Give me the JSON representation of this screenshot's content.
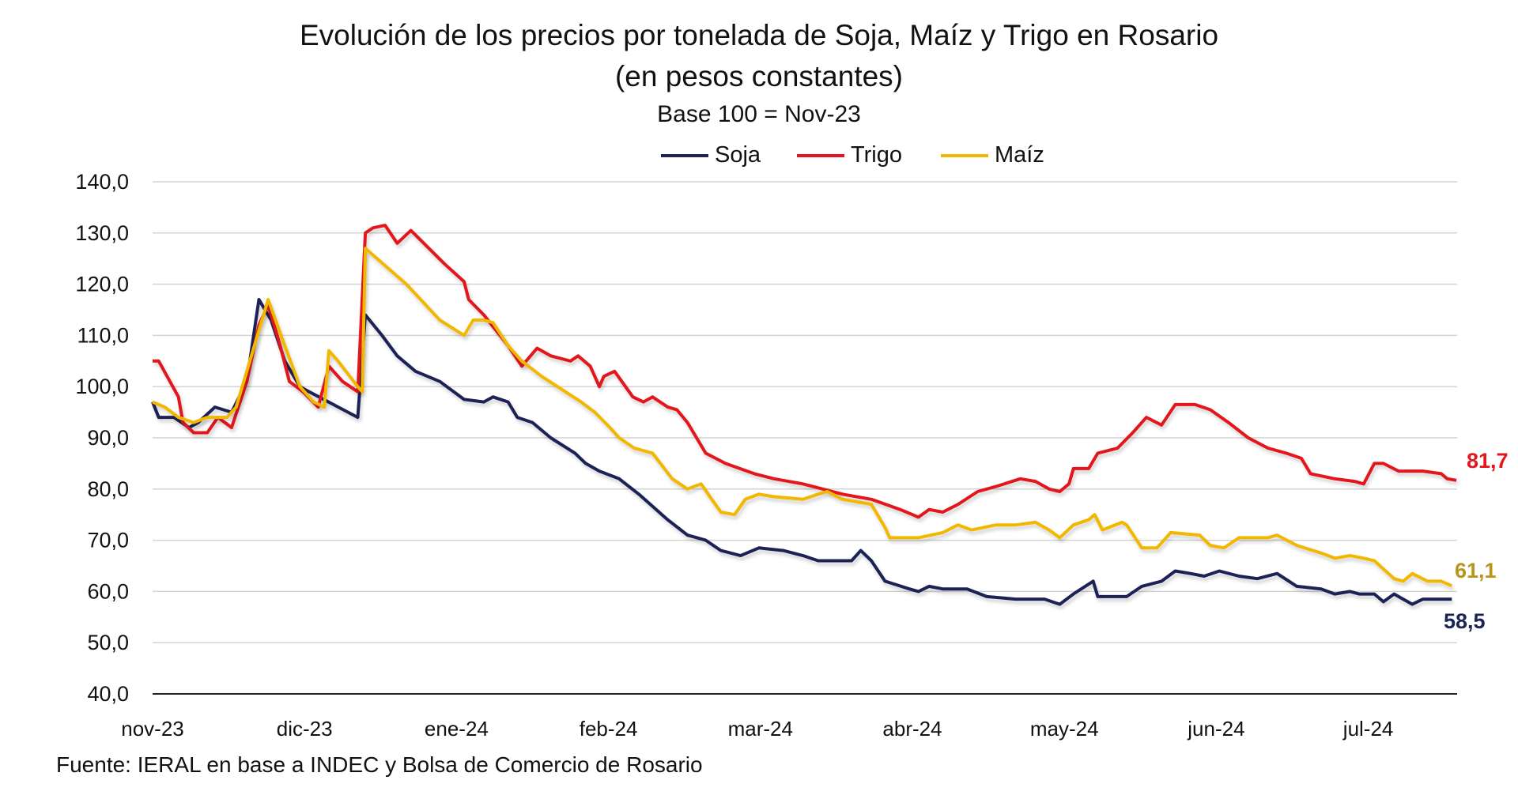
{
  "chart_data": {
    "type": "line",
    "title": "Evolución de los precios por tonelada de Soja, Maíz y Trigo en Rosario",
    "subtitle": "(en pesos constantes)",
    "subtitle2": "Base 100 = Nov-23",
    "xlabel": "",
    "ylabel": "",
    "ylim": [
      40,
      140
    ],
    "yticks": [
      40,
      50,
      60,
      70,
      80,
      90,
      100,
      110,
      120,
      130,
      140
    ],
    "ytick_labels": [
      "40,0",
      "50,0",
      "60,0",
      "70,0",
      "80,0",
      "90,0",
      "100,0",
      "110,0",
      "120,0",
      "130,0",
      "140,0"
    ],
    "x_unit": "months since start of nov-23",
    "xlim": [
      0,
      8.6
    ],
    "xticks": [
      0,
      1,
      2,
      3,
      4,
      5,
      6,
      7,
      8
    ],
    "xtick_labels": [
      "nov-23",
      "dic-23",
      "ene-24",
      "feb-24",
      "mar-24",
      "abr-24",
      "may-24",
      "jun-24",
      "jul-24"
    ],
    "grid": true,
    "legend_placement": "top-center",
    "series": [
      {
        "name": "Soja",
        "color": "#1b2454",
        "end_label": "58,5",
        "points": [
          [
            0,
            97
          ],
          [
            0.04,
            94
          ],
          [
            0.14,
            94
          ],
          [
            0.24,
            92
          ],
          [
            0.3,
            93
          ],
          [
            0.41,
            96
          ],
          [
            0.52,
            95
          ],
          [
            0.62,
            101
          ],
          [
            0.7,
            117
          ],
          [
            0.78,
            113
          ],
          [
            0.87,
            105
          ],
          [
            0.97,
            100
          ],
          [
            1.03,
            99
          ],
          [
            1.35,
            94
          ],
          [
            1.4,
            114
          ],
          [
            1.51,
            110
          ],
          [
            1.61,
            106
          ],
          [
            1.73,
            103
          ],
          [
            1.89,
            101
          ],
          [
            2.05,
            97.5
          ],
          [
            2.18,
            97
          ],
          [
            2.24,
            98
          ],
          [
            2.34,
            97
          ],
          [
            2.4,
            94
          ],
          [
            2.5,
            93
          ],
          [
            2.62,
            90
          ],
          [
            2.78,
            87
          ],
          [
            2.85,
            85
          ],
          [
            2.94,
            83.5
          ],
          [
            3.07,
            82
          ],
          [
            3.2,
            79
          ],
          [
            3.39,
            74
          ],
          [
            3.52,
            71
          ],
          [
            3.64,
            70
          ],
          [
            3.74,
            68
          ],
          [
            3.87,
            67
          ],
          [
            3.99,
            68.5
          ],
          [
            4.15,
            68
          ],
          [
            4.28,
            67
          ],
          [
            4.38,
            66
          ],
          [
            4.54,
            66
          ],
          [
            4.6,
            66
          ],
          [
            4.66,
            68
          ],
          [
            4.73,
            66
          ],
          [
            4.82,
            62
          ],
          [
            4.98,
            60.5
          ],
          [
            5.04,
            60
          ],
          [
            5.11,
            61
          ],
          [
            5.2,
            60.5
          ],
          [
            5.36,
            60.5
          ],
          [
            5.49,
            59
          ],
          [
            5.68,
            58.5
          ],
          [
            5.87,
            58.5
          ],
          [
            5.97,
            57.5
          ],
          [
            6.06,
            59.5
          ],
          [
            6.19,
            62
          ],
          [
            6.22,
            59
          ],
          [
            6.41,
            59
          ],
          [
            6.51,
            61
          ],
          [
            6.64,
            62
          ],
          [
            6.73,
            64
          ],
          [
            6.83,
            63.5
          ],
          [
            6.92,
            63
          ],
          [
            7.02,
            64
          ],
          [
            7.15,
            63
          ],
          [
            7.27,
            62.5
          ],
          [
            7.4,
            63.5
          ],
          [
            7.53,
            61
          ],
          [
            7.69,
            60.5
          ],
          [
            7.78,
            59.5
          ],
          [
            7.88,
            60
          ],
          [
            7.94,
            59.5
          ],
          [
            8.04,
            59.5
          ],
          [
            8.1,
            58
          ],
          [
            8.17,
            59.5
          ],
          [
            8.29,
            57.5
          ],
          [
            8.36,
            58.5
          ],
          [
            8.55,
            58.5
          ]
        ]
      },
      {
        "name": "Trigo",
        "color": "#e3161d",
        "end_label": "81,7",
        "points": [
          [
            0,
            105
          ],
          [
            0.04,
            105
          ],
          [
            0.17,
            98
          ],
          [
            0.2,
            93
          ],
          [
            0.27,
            91
          ],
          [
            0.36,
            91
          ],
          [
            0.43,
            94
          ],
          [
            0.52,
            92
          ],
          [
            0.62,
            101
          ],
          [
            0.7,
            112
          ],
          [
            0.76,
            116
          ],
          [
            0.84,
            108
          ],
          [
            0.9,
            101
          ],
          [
            0.99,
            99
          ],
          [
            1.09,
            96
          ],
          [
            1.16,
            104
          ],
          [
            1.25,
            101
          ],
          [
            1.35,
            99
          ],
          [
            1.4,
            130
          ],
          [
            1.45,
            131
          ],
          [
            1.53,
            131.5
          ],
          [
            1.61,
            128
          ],
          [
            1.7,
            130.5
          ],
          [
            1.92,
            124
          ],
          [
            2.05,
            120.5
          ],
          [
            2.08,
            117
          ],
          [
            2.18,
            114
          ],
          [
            2.34,
            108
          ],
          [
            2.43,
            104
          ],
          [
            2.53,
            107.5
          ],
          [
            2.62,
            106
          ],
          [
            2.75,
            105
          ],
          [
            2.8,
            106
          ],
          [
            2.88,
            104
          ],
          [
            2.94,
            100
          ],
          [
            2.97,
            102
          ],
          [
            3.04,
            103
          ],
          [
            3.16,
            98
          ],
          [
            3.23,
            97
          ],
          [
            3.29,
            98
          ],
          [
            3.39,
            96
          ],
          [
            3.45,
            95.5
          ],
          [
            3.52,
            93
          ],
          [
            3.64,
            87
          ],
          [
            3.77,
            85
          ],
          [
            3.96,
            83
          ],
          [
            4.09,
            82
          ],
          [
            4.28,
            81
          ],
          [
            4.41,
            80
          ],
          [
            4.54,
            79
          ],
          [
            4.73,
            78
          ],
          [
            4.92,
            76
          ],
          [
            5.04,
            74.5
          ],
          [
            5.11,
            76
          ],
          [
            5.2,
            75.5
          ],
          [
            5.3,
            77
          ],
          [
            5.43,
            79.5
          ],
          [
            5.55,
            80.5
          ],
          [
            5.71,
            82
          ],
          [
            5.81,
            81.5
          ],
          [
            5.9,
            80
          ],
          [
            5.97,
            79.5
          ],
          [
            6.03,
            81
          ],
          [
            6.06,
            84
          ],
          [
            6.16,
            84
          ],
          [
            6.22,
            87
          ],
          [
            6.35,
            88
          ],
          [
            6.45,
            91
          ],
          [
            6.54,
            94
          ],
          [
            6.64,
            92.5
          ],
          [
            6.73,
            96.5
          ],
          [
            6.86,
            96.5
          ],
          [
            6.96,
            95.5
          ],
          [
            7.08,
            93
          ],
          [
            7.21,
            90
          ],
          [
            7.34,
            88
          ],
          [
            7.46,
            87
          ],
          [
            7.56,
            86
          ],
          [
            7.62,
            83
          ],
          [
            7.78,
            82
          ],
          [
            7.91,
            81.5
          ],
          [
            7.97,
            81
          ],
          [
            8.04,
            85
          ],
          [
            8.1,
            85
          ],
          [
            8.2,
            83.5
          ],
          [
            8.36,
            83.5
          ],
          [
            8.48,
            83
          ],
          [
            8.52,
            82
          ],
          [
            8.58,
            81.7
          ]
        ]
      },
      {
        "name": "Maíz",
        "color": "#f2b705",
        "end_label": "61,1",
        "end_label_color": "#b8961a",
        "points": [
          [
            0,
            97
          ],
          [
            0.08,
            96
          ],
          [
            0.17,
            94
          ],
          [
            0.27,
            93
          ],
          [
            0.36,
            94
          ],
          [
            0.49,
            94
          ],
          [
            0.55,
            96
          ],
          [
            0.64,
            105
          ],
          [
            0.71,
            112
          ],
          [
            0.76,
            117
          ],
          [
            0.87,
            108
          ],
          [
            0.97,
            100
          ],
          [
            1.06,
            97
          ],
          [
            1.13,
            96
          ],
          [
            1.16,
            107
          ],
          [
            1.22,
            105
          ],
          [
            1.35,
            100
          ],
          [
            1.38,
            99
          ],
          [
            1.4,
            127
          ],
          [
            1.67,
            120
          ],
          [
            1.89,
            113
          ],
          [
            2.05,
            110
          ],
          [
            2.11,
            113
          ],
          [
            2.18,
            113
          ],
          [
            2.24,
            112.5
          ],
          [
            2.34,
            108
          ],
          [
            2.43,
            105
          ],
          [
            2.56,
            102
          ],
          [
            2.82,
            97
          ],
          [
            2.91,
            95
          ],
          [
            3.01,
            92
          ],
          [
            3.07,
            90
          ],
          [
            3.17,
            88
          ],
          [
            3.29,
            87
          ],
          [
            3.42,
            82
          ],
          [
            3.52,
            80
          ],
          [
            3.61,
            81
          ],
          [
            3.68,
            78
          ],
          [
            3.74,
            75.5
          ],
          [
            3.83,
            75
          ],
          [
            3.9,
            78
          ],
          [
            3.99,
            79
          ],
          [
            4.09,
            78.5
          ],
          [
            4.28,
            78
          ],
          [
            4.38,
            79
          ],
          [
            4.44,
            79.5
          ],
          [
            4.54,
            78
          ],
          [
            4.73,
            77
          ],
          [
            4.82,
            72.5
          ],
          [
            4.85,
            70.5
          ],
          [
            5.04,
            70.5
          ],
          [
            5.2,
            71.5
          ],
          [
            5.3,
            73
          ],
          [
            5.39,
            72
          ],
          [
            5.55,
            73
          ],
          [
            5.68,
            73
          ],
          [
            5.81,
            73.5
          ],
          [
            5.9,
            72
          ],
          [
            5.97,
            70.5
          ],
          [
            6.06,
            73
          ],
          [
            6.16,
            74
          ],
          [
            6.2,
            75
          ],
          [
            6.25,
            72
          ],
          [
            6.38,
            73.5
          ],
          [
            6.41,
            73
          ],
          [
            6.51,
            68.5
          ],
          [
            6.61,
            68.5
          ],
          [
            6.7,
            71.5
          ],
          [
            6.89,
            71
          ],
          [
            6.96,
            69
          ],
          [
            7.05,
            68.5
          ],
          [
            7.15,
            70.5
          ],
          [
            7.34,
            70.5
          ],
          [
            7.4,
            71
          ],
          [
            7.53,
            69
          ],
          [
            7.69,
            67.5
          ],
          [
            7.78,
            66.5
          ],
          [
            7.88,
            67
          ],
          [
            7.97,
            66.5
          ],
          [
            8.04,
            66
          ],
          [
            8.17,
            62.5
          ],
          [
            8.23,
            62
          ],
          [
            8.29,
            63.5
          ],
          [
            8.39,
            62
          ],
          [
            8.48,
            62
          ],
          [
            8.55,
            61.1
          ]
        ]
      }
    ],
    "legend": [
      "Soja",
      "Trigo",
      "Maíz"
    ]
  },
  "source": "Fuente: IERAL en base a INDEC y Bolsa de Comercio de Rosario"
}
